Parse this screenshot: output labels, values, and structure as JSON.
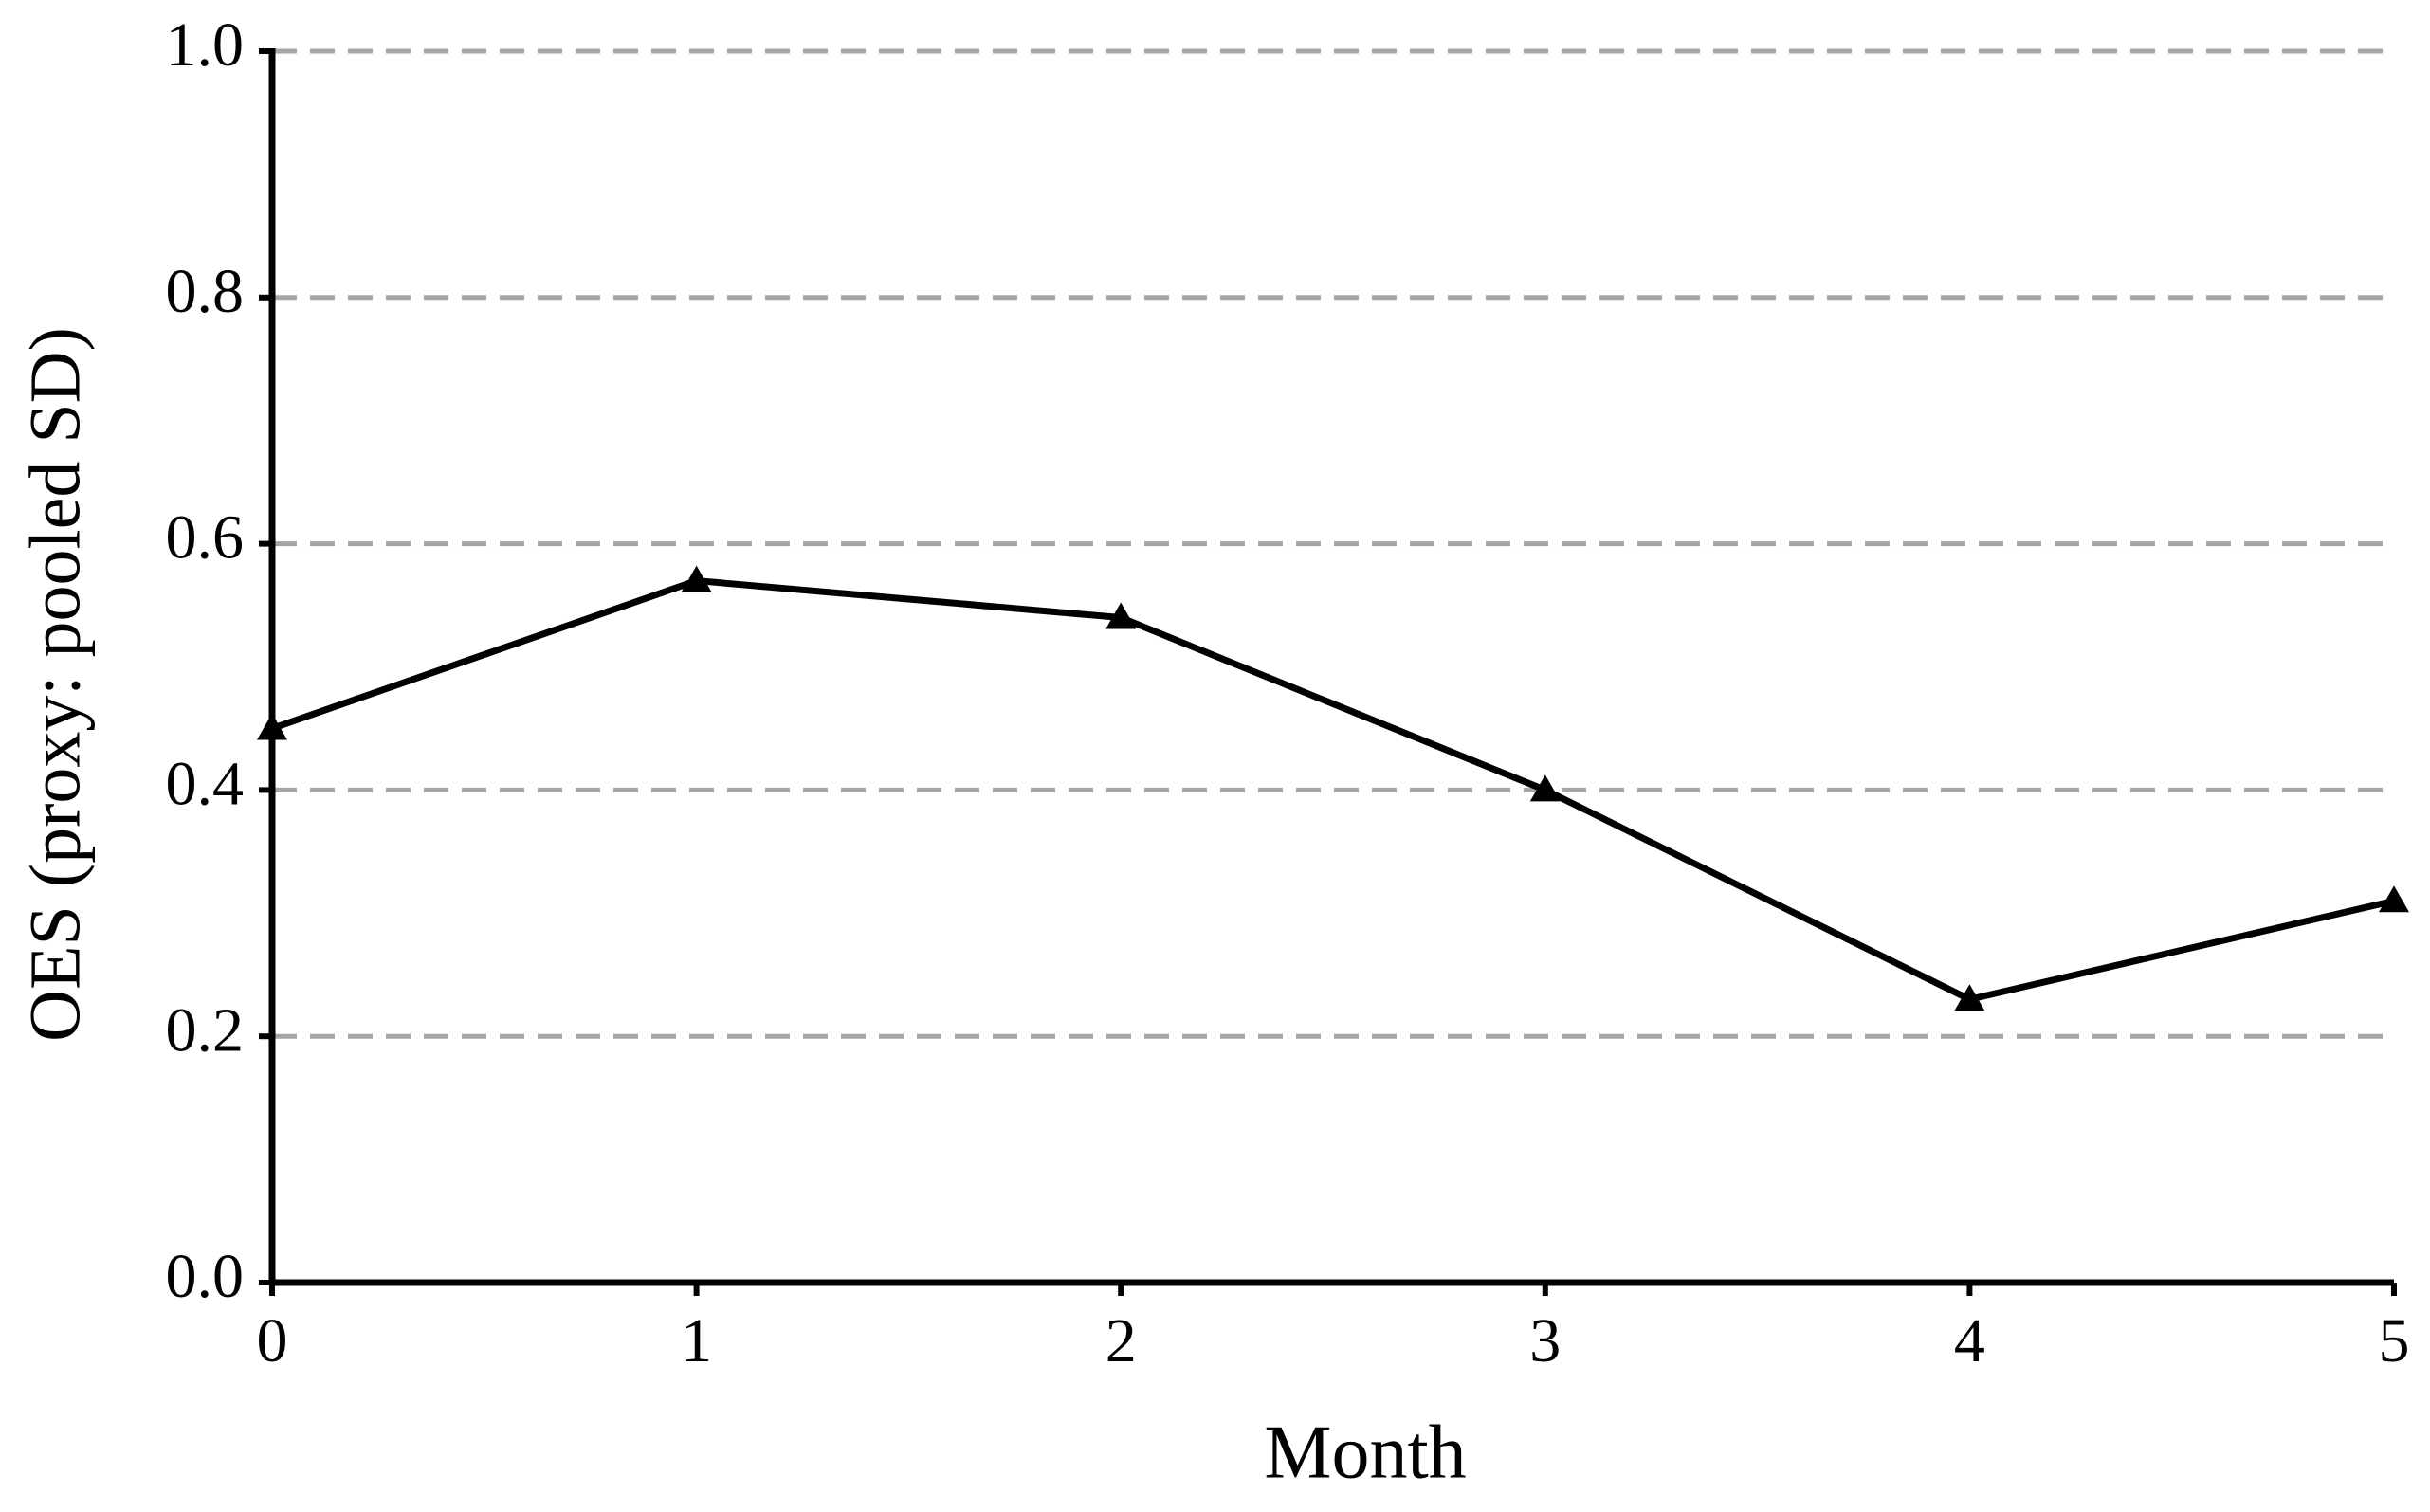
{
  "chart_data": {
    "type": "line",
    "x_label": "Month",
    "y_label": "OES (proxy: pooled SD)",
    "x": [
      0,
      1,
      2,
      3,
      4,
      5
    ],
    "series": [
      {
        "color": "#000000",
        "values": [
          0.45,
          0.57,
          0.54,
          0.4,
          0.23,
          0.31
        ]
      }
    ],
    "xlim": [
      0,
      5
    ],
    "xticks": [
      0,
      1,
      2,
      3,
      4,
      5
    ],
    "ylim": [
      0,
      1
    ],
    "yticks": [
      {
        "value": 0,
        "label": "0.0"
      },
      0.2,
      0.4,
      0.6,
      0.8,
      {
        "value": 1,
        "label": "1.0"
      }
    ],
    "grid": true
  }
}
